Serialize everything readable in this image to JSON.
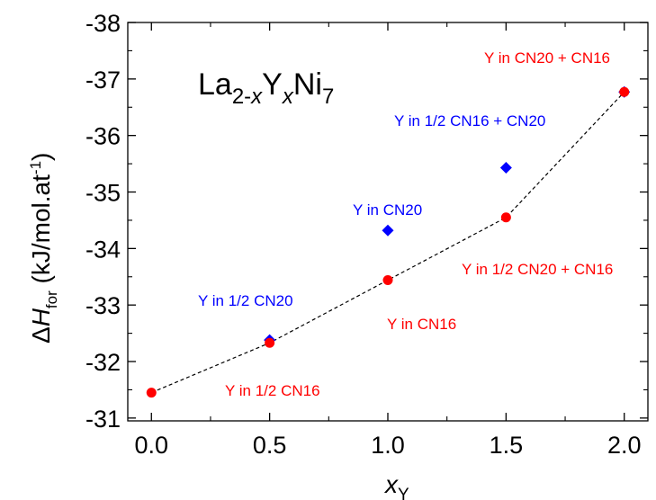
{
  "colors": {
    "red": "#ff0000",
    "blue": "#0000ff",
    "axis": "#000000",
    "fit_line": "#000000"
  },
  "chart_data": {
    "type": "scatter",
    "formula": {
      "base1": "La",
      "sub1": "2-",
      "sub1_italic": "x",
      "base2": "Y",
      "sub2_italic": "x",
      "base3": "Ni",
      "sub3": "7"
    },
    "xlabel": {
      "main": "x",
      "sub": "Y"
    },
    "ylabel": {
      "prefix": "Δ",
      "main": "H",
      "sub": "for",
      "unit": " (kJ/mol.at",
      "sup": "-1",
      "close": ")"
    },
    "x_axis": {
      "range": [
        -0.1,
        2.1
      ],
      "ticks": [
        "0.0",
        "0.5",
        "1.0",
        "1.5",
        "2.0"
      ],
      "tick_values": [
        0,
        0.5,
        1.0,
        1.5,
        2.0
      ]
    },
    "y_axis": {
      "range": [
        -30.95,
        -38.0
      ],
      "reversed": true,
      "ticks": [
        "-31",
        "-32",
        "-33",
        "-34",
        "-35",
        "-36",
        "-37",
        "-38"
      ],
      "tick_values": [
        -31,
        -32,
        -33,
        -34,
        -35,
        -36,
        -37,
        -38
      ]
    },
    "series": [
      {
        "marker": "circle",
        "color": "#ff0000",
        "x": [
          0,
          0.5,
          1.0,
          1.5,
          2.0
        ],
        "y": [
          -31.45,
          -32.33,
          -33.44,
          -34.55,
          -36.77
        ],
        "dashed_line": true
      },
      {
        "marker": "diamond",
        "color": "#0000ff",
        "x": [
          0.5,
          1.0,
          1.5,
          2.0
        ],
        "y": [
          -32.38,
          -34.32,
          -35.43,
          -36.77
        ]
      }
    ],
    "annotations": [
      {
        "text": "Y in  CN20 + CN16",
        "color": "red"
      },
      {
        "text": "Y in 1/2 CN16 + CN20",
        "color": "blue"
      },
      {
        "text": "Y in CN20",
        "color": "blue"
      },
      {
        "text": "Y in 1/2 CN20 + CN16",
        "color": "red"
      },
      {
        "text": "Y in 1/2 CN20",
        "color": "blue"
      },
      {
        "text": "Y in CN16",
        "color": "red"
      },
      {
        "text": "Y in 1/2 CN16",
        "color": "red"
      }
    ]
  }
}
